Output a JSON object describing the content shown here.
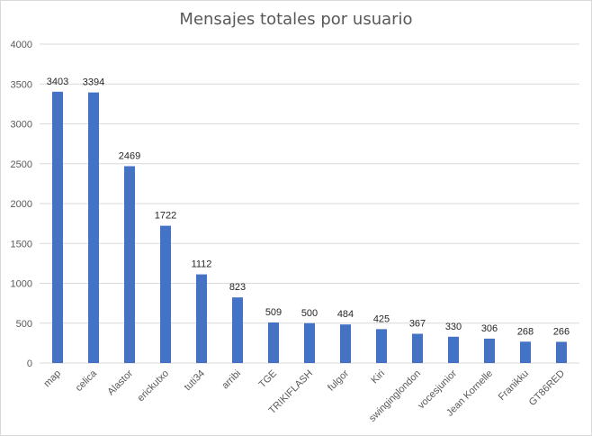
{
  "chart_data": {
    "type": "bar",
    "title": "Mensajes totales por usuario",
    "xlabel": "",
    "ylabel": "",
    "categories": [
      "map",
      "celica",
      "Alastor",
      "erickutxo",
      "tuti34",
      "arribi",
      "TGE",
      "TRIKIFLASH",
      "fulgor",
      "Kiri",
      "swinginglondon",
      "vocesjunior",
      "Jean Kornelle",
      "Franikku",
      "GT86RED"
    ],
    "values": [
      3403,
      3394,
      2469,
      1722,
      1112,
      823,
      509,
      500,
      484,
      425,
      367,
      330,
      306,
      268,
      266
    ],
    "ylim": [
      0,
      4000
    ],
    "yticks": [
      0,
      500,
      1000,
      1500,
      2000,
      2500,
      3000,
      3500,
      4000
    ],
    "grid": true,
    "legend": "none",
    "bar_color": "#4472c4",
    "grid_color": "#d9d9d9"
  }
}
